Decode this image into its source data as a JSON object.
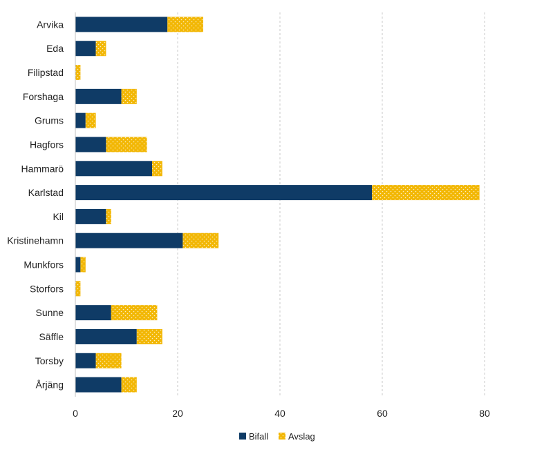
{
  "chart_data": {
    "type": "bar",
    "orientation": "horizontal",
    "stacked": true,
    "title": "",
    "xlabel": "",
    "ylabel": "",
    "xlim": [
      0,
      80
    ],
    "xticks": [
      0,
      20,
      40,
      60,
      80
    ],
    "grid": "vertical dashed",
    "legend_position": "bottom-center",
    "categories": [
      "Arvika",
      "Eda",
      "Filipstad",
      "Forshaga",
      "Grums",
      "Hagfors",
      "Hammarö",
      "Karlstad",
      "Kil",
      "Kristinehamn",
      "Munkfors",
      "Storfors",
      "Sunne",
      "Säffle",
      "Torsby",
      "Årjäng"
    ],
    "series": [
      {
        "name": "Bifall",
        "color": "#0f3b66",
        "values": [
          18,
          4,
          0,
          9,
          2,
          6,
          15,
          58,
          6,
          21,
          1,
          0,
          7,
          12,
          4,
          9
        ]
      },
      {
        "name": "Avslag",
        "color": "#f2b705",
        "values": [
          7,
          2,
          1,
          3,
          2,
          8,
          2,
          21,
          1,
          7,
          1,
          1,
          9,
          5,
          5,
          3
        ]
      }
    ]
  }
}
